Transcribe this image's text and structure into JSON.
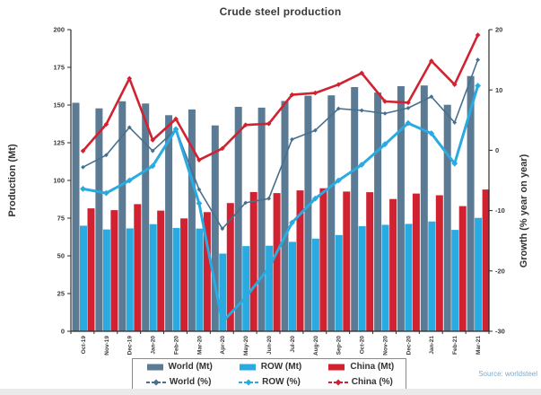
{
  "page": {
    "title": "Crude steel production",
    "source_note": "Source: worldsteel"
  },
  "chart_data": {
    "type": "combo_bar_line",
    "categories": [
      "Oct-19",
      "Nov-19",
      "Dec-19",
      "Jan-20",
      "Feb-20",
      "Mar-20",
      "Apr-20",
      "May-20",
      "Jun-20",
      "Jul-20",
      "Aug-20",
      "Sep-20",
      "Oct-20",
      "Nov-20",
      "Dec-20",
      "Jan-21",
      "Feb-21",
      "Mar-21"
    ],
    "bar_series": [
      {
        "name": "World (Mt)",
        "axis": "left",
        "color": "#5b7a93",
        "values": [
          151.5,
          147.8,
          152.5,
          151.0,
          143.3,
          147.1,
          136.5,
          148.8,
          148.3,
          152.7,
          156.2,
          156.4,
          161.9,
          158.3,
          162.5,
          163.0,
          150.2,
          169.2
        ]
      },
      {
        "name": "ROW (Mt)",
        "axis": "left",
        "color": "#29abe2",
        "values": [
          70.0,
          67.5,
          68.2,
          71.0,
          68.5,
          68.1,
          51.5,
          56.5,
          56.7,
          59.3,
          61.4,
          63.8,
          69.7,
          70.6,
          71.2,
          72.8,
          67.2,
          75.2
        ]
      },
      {
        "name": "China (Mt)",
        "axis": "left",
        "color": "#d02231",
        "values": [
          81.5,
          80.3,
          84.3,
          80.0,
          74.8,
          79.0,
          85.0,
          92.3,
          91.6,
          93.4,
          94.8,
          92.6,
          92.2,
          87.7,
          91.3,
          90.2,
          83.0,
          94.0
        ]
      }
    ],
    "line_series": [
      {
        "name": "World (%)",
        "axis": "right",
        "color": "#47708e",
        "stroke_width": 1.6,
        "marker_size": 2.4,
        "values": [
          -2.8,
          -0.8,
          3.8,
          -0.1,
          3.5,
          -6.5,
          -13.0,
          -8.7,
          -8.0,
          1.8,
          3.3,
          6.9,
          6.6,
          6.1,
          7.0,
          8.9,
          4.6,
          15.0
        ]
      },
      {
        "name": "ROW (%)",
        "axis": "right",
        "color": "#29abe2",
        "stroke_width": 3.0,
        "marker_size": 3.4,
        "values": [
          -6.4,
          -7.1,
          -5.0,
          -2.6,
          3.5,
          -8.8,
          -28.5,
          -24.4,
          -19.5,
          -12.0,
          -8.0,
          -5.0,
          -2.4,
          1.0,
          4.5,
          2.8,
          -2.2,
          10.7
        ]
      },
      {
        "name": "China (%)",
        "axis": "right",
        "color": "#d02231",
        "stroke_width": 2.6,
        "marker_size": 2.8,
        "values": [
          -0.1,
          4.3,
          11.9,
          1.7,
          5.2,
          -1.6,
          0.3,
          4.2,
          4.4,
          9.2,
          9.5,
          10.9,
          12.8,
          8.1,
          7.9,
          14.8,
          10.9,
          19.1
        ]
      }
    ],
    "left_axis": {
      "label": "Production (Mt)",
      "min": 0,
      "max": 200,
      "step": 25,
      "tick_labels": [
        "0",
        "25",
        "50",
        "75",
        "100",
        "125",
        "150",
        "175",
        "200"
      ]
    },
    "right_axis": {
      "label": "Growth (% year on year)",
      "min": -30,
      "max": 20,
      "step": 10,
      "tick_labels": [
        "-30",
        "-20",
        "-10",
        "0",
        "10",
        "20"
      ]
    },
    "legend_position": "bottom",
    "grid": false
  },
  "colors": {
    "axis": "#2b2b2b",
    "tick_text": "#3a3a3a",
    "title_text": "#3a3a3a",
    "source_text": "#7fa9c9",
    "legend_border": "#8a8a8a"
  }
}
